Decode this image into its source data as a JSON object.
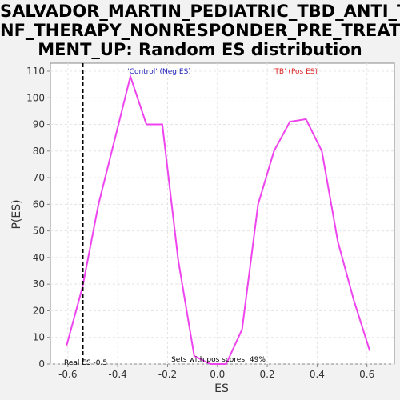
{
  "title_lines": [
    "SALVADOR_MARTIN_PEDIATRIC_TBD_ANTI_T",
    "NF_THERAPY_NONRESPONDER_PRE_TREAT",
    "MENT_UP: Random ES distribution"
  ],
  "colors": {
    "line": "#ee44ee",
    "neg_label": "#2222bb",
    "pos_label": "#dd2222",
    "plot_bg": "#ffffff",
    "grid": "#e4e4e4"
  },
  "chart_data": {
    "type": "line",
    "xlabel": "ES",
    "ylabel": "P(ES)",
    "xlim": [
      -0.67,
      0.71
    ],
    "ylim": [
      0,
      113
    ],
    "x_ticks": [
      -0.6,
      -0.4,
      -0.2,
      0.0,
      0.2,
      0.4,
      0.6
    ],
    "x_tick_labels": [
      "-0.6",
      "-0.4",
      "-0.2",
      "0.0",
      "0.2",
      "0.4",
      "0.6"
    ],
    "y_ticks": [
      0,
      10,
      20,
      30,
      40,
      50,
      60,
      70,
      80,
      90,
      100,
      110
    ],
    "y_tick_labels": [
      "0",
      "10",
      "20",
      "30",
      "40",
      "50",
      "60",
      "70",
      "80",
      "90",
      "100",
      "110"
    ],
    "grid": true,
    "series": [
      {
        "x": [
          -0.605,
          -0.541,
          -0.477,
          -0.413,
          -0.349,
          -0.285,
          -0.221,
          -0.157,
          -0.093,
          -0.029,
          0.035,
          0.099,
          0.163,
          0.227,
          0.291,
          0.355,
          0.419,
          0.483,
          0.547,
          0.611
        ],
        "y": [
          7,
          29,
          60,
          84,
          108,
          90,
          90,
          39,
          3,
          0,
          0,
          13,
          60,
          80,
          91,
          92,
          80,
          46,
          24,
          5
        ]
      }
    ],
    "real_es": -0.54,
    "annotations": {
      "neg_label": "'Control' (Neg ES)",
      "pos_label": "'TB' (Pos ES)",
      "real_es_label": "Real ES -0.5",
      "sets_label": "Sets with pos scores: 49%"
    }
  }
}
